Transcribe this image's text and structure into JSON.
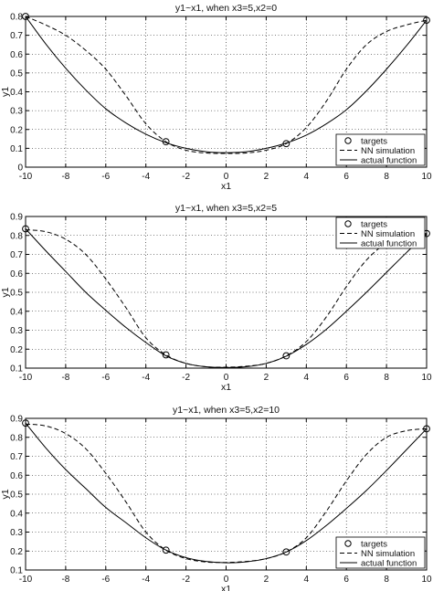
{
  "chart_data": [
    {
      "type": "line",
      "title": "y1~x1, when x3=5,x2=0",
      "xlabel": "x1",
      "ylabel": "y1",
      "xlim": [
        -10,
        10
      ],
      "ylim": [
        0,
        0.8
      ],
      "xticks": [
        -10,
        -8,
        -6,
        -4,
        -2,
        0,
        2,
        4,
        6,
        8,
        10
      ],
      "yticks": [
        0,
        0.1,
        0.2,
        0.3,
        0.4,
        0.5,
        0.6,
        0.7,
        0.8
      ],
      "grid": true,
      "legend_position": "bottom-right",
      "series": [
        {
          "name": "targets",
          "style": "circle markers",
          "x": [
            -10,
            -3,
            3,
            10
          ],
          "y": [
            0.8,
            0.135,
            0.125,
            0.78
          ]
        },
        {
          "name": "NN simulation",
          "style": "dashed",
          "x": [
            -10,
            -9,
            -8,
            -7,
            -6,
            -5,
            -4,
            -3,
            -2,
            -1,
            0,
            1,
            2,
            3,
            4,
            5,
            6,
            7,
            8,
            9,
            10
          ],
          "y": [
            0.8,
            0.755,
            0.7,
            0.62,
            0.52,
            0.38,
            0.23,
            0.135,
            0.09,
            0.075,
            0.073,
            0.075,
            0.09,
            0.125,
            0.21,
            0.35,
            0.52,
            0.65,
            0.72,
            0.755,
            0.78
          ]
        },
        {
          "name": "actual function",
          "style": "solid",
          "x": [
            -10,
            -9,
            -8,
            -7,
            -6,
            -5,
            -4,
            -3,
            -2,
            -1,
            0,
            1,
            2,
            3,
            4,
            5,
            6,
            7,
            8,
            9,
            10
          ],
          "y": [
            0.8,
            0.655,
            0.525,
            0.41,
            0.31,
            0.235,
            0.175,
            0.13,
            0.1,
            0.082,
            0.077,
            0.082,
            0.1,
            0.128,
            0.17,
            0.23,
            0.305,
            0.405,
            0.52,
            0.645,
            0.78
          ]
        }
      ]
    },
    {
      "type": "line",
      "title": "y1~x1, when x3=5,x2=5",
      "xlabel": "x1",
      "ylabel": "y1",
      "xlim": [
        -10,
        10
      ],
      "ylim": [
        0.1,
        0.9
      ],
      "xticks": [
        -10,
        -8,
        -6,
        -4,
        -2,
        0,
        2,
        4,
        6,
        8,
        10
      ],
      "yticks": [
        0.1,
        0.2,
        0.3,
        0.4,
        0.5,
        0.6,
        0.7,
        0.8,
        0.9
      ],
      "grid": true,
      "legend_position": "top-right",
      "series": [
        {
          "name": "targets",
          "style": "circle markers",
          "x": [
            -10,
            -3,
            3,
            10
          ],
          "y": [
            0.835,
            0.17,
            0.165,
            0.81
          ]
        },
        {
          "name": "NN simulation",
          "style": "dashed",
          "x": [
            -10,
            -9,
            -8,
            -7,
            -6,
            -5,
            -4,
            -3,
            -2,
            -1,
            0,
            1,
            2,
            3,
            4,
            5,
            6,
            7,
            8,
            9,
            10
          ],
          "y": [
            0.83,
            0.82,
            0.78,
            0.7,
            0.57,
            0.42,
            0.26,
            0.17,
            0.125,
            0.107,
            0.105,
            0.11,
            0.125,
            0.165,
            0.24,
            0.37,
            0.53,
            0.67,
            0.76,
            0.8,
            0.81
          ]
        },
        {
          "name": "actual function",
          "style": "solid",
          "x": [
            -10,
            -9,
            -8,
            -7,
            -6,
            -5,
            -4,
            -3,
            -2,
            -1,
            0,
            1,
            2,
            3,
            4,
            5,
            6,
            7,
            8,
            9,
            10
          ],
          "y": [
            0.835,
            0.72,
            0.61,
            0.5,
            0.405,
            0.315,
            0.235,
            0.165,
            0.125,
            0.107,
            0.103,
            0.107,
            0.125,
            0.163,
            0.225,
            0.305,
            0.4,
            0.5,
            0.605,
            0.71,
            0.81
          ]
        }
      ]
    },
    {
      "type": "line",
      "title": "y1~x1, when x3=5,x2=10",
      "xlabel": "x1",
      "ylabel": "y1",
      "xlim": [
        -10,
        10
      ],
      "ylim": [
        0.1,
        0.9
      ],
      "xticks": [
        -10,
        -8,
        -6,
        -4,
        -2,
        0,
        2,
        4,
        6,
        8,
        10
      ],
      "yticks": [
        0.1,
        0.2,
        0.3,
        0.4,
        0.5,
        0.6,
        0.7,
        0.8,
        0.9
      ],
      "grid": true,
      "legend_position": "bottom-right",
      "series": [
        {
          "name": "targets",
          "style": "circle markers",
          "x": [
            -10,
            -3,
            3,
            10
          ],
          "y": [
            0.875,
            0.205,
            0.195,
            0.845
          ]
        },
        {
          "name": "NN simulation",
          "style": "dashed",
          "x": [
            -10,
            -9,
            -8,
            -7,
            -6,
            -5,
            -4,
            -3,
            -2,
            -1,
            0,
            1,
            2,
            3,
            4,
            5,
            6,
            7,
            8,
            9,
            10
          ],
          "y": [
            0.87,
            0.86,
            0.82,
            0.74,
            0.61,
            0.46,
            0.3,
            0.205,
            0.16,
            0.142,
            0.14,
            0.145,
            0.16,
            0.195,
            0.27,
            0.41,
            0.57,
            0.71,
            0.8,
            0.835,
            0.845
          ]
        },
        {
          "name": "actual function",
          "style": "solid",
          "x": [
            -10,
            -9,
            -8,
            -7,
            -6,
            -5,
            -4,
            -3,
            -2,
            -1,
            0,
            1,
            2,
            3,
            4,
            5,
            6,
            7,
            8,
            9,
            10
          ],
          "y": [
            0.875,
            0.745,
            0.63,
            0.53,
            0.43,
            0.35,
            0.27,
            0.205,
            0.165,
            0.145,
            0.138,
            0.143,
            0.16,
            0.195,
            0.255,
            0.335,
            0.425,
            0.52,
            0.625,
            0.735,
            0.845
          ]
        }
      ]
    }
  ]
}
